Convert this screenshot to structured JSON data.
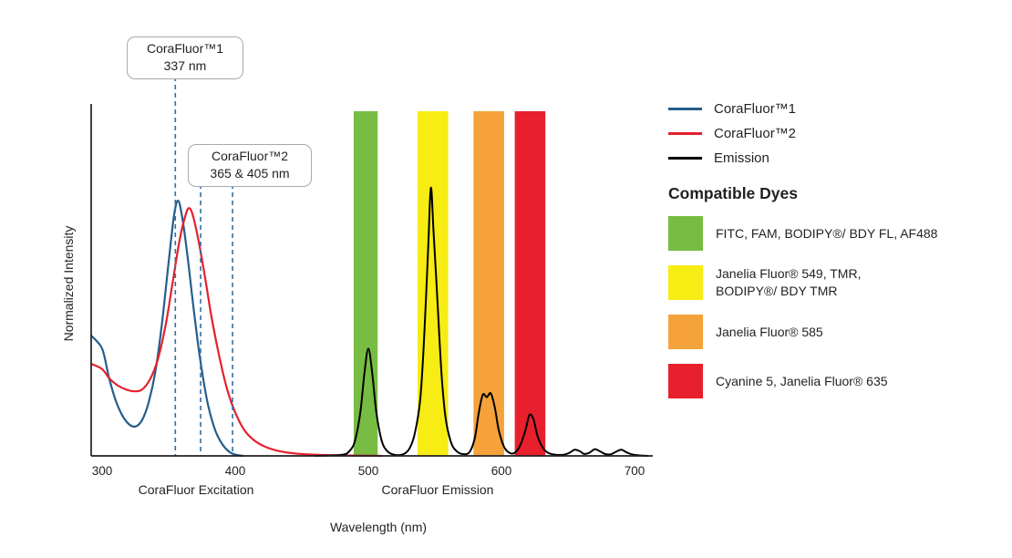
{
  "legend": {
    "series": [
      {
        "label": "CoraFluor™1",
        "color": "#255e8c"
      },
      {
        "label": "CoraFluor™2",
        "color": "#e4212e"
      },
      {
        "label": "Emission",
        "color": "#000000"
      }
    ],
    "dyes_title": "Compatible Dyes",
    "dyes": [
      {
        "label": "FITC, FAM, BODIPY®/ BDY FL, AF488",
        "color": "#77bc43"
      },
      {
        "label": "Janelia Fluor® 549, TMR,\nBODIPY®/ BDY TMR",
        "color": "#f7ec13"
      },
      {
        "label": "Janelia Fluor® 585",
        "color": "#f5a23b"
      },
      {
        "label": "Cyanine 5, Janelia Fluor® 635",
        "color": "#e8202e"
      }
    ]
  },
  "chart_data": {
    "type": "line",
    "title": "",
    "xlabel": "Wavelength (nm)",
    "ylabel": "Normalized Intensity",
    "x_ticks": [
      300,
      400,
      500,
      600,
      700
    ],
    "x_range": [
      292,
      712
    ],
    "y_range": [
      0,
      1.35
    ],
    "grid": false,
    "legend_position": "right",
    "axis_section_labels": [
      {
        "text": "CoraFluor Excitation",
        "center_nm": 370
      },
      {
        "text": "CoraFluor Emission",
        "center_nm": 552
      }
    ],
    "annotations": [
      {
        "title": "CoraFluor™1",
        "subtitle": "337 nm",
        "lines_nm": [
          355
        ]
      },
      {
        "title": "CoraFluor™2",
        "subtitle": "365 & 405 nm",
        "lines_nm": [
          374,
          398
        ]
      }
    ],
    "annotation_line_color": "#2f6fa7",
    "bands": [
      {
        "name": "fitc-fam-bodipy-fl-af488",
        "from_nm": 489,
        "to_nm": 507,
        "color": "#77bc43"
      },
      {
        "name": "jf549-tmr-bodipy-tmr",
        "from_nm": 537,
        "to_nm": 560,
        "color": "#f7ec13"
      },
      {
        "name": "jf585",
        "from_nm": 579,
        "to_nm": 602,
        "color": "#f5a23b"
      },
      {
        "name": "cy5-jf635",
        "from_nm": 610,
        "to_nm": 633,
        "color": "#e8202e"
      }
    ],
    "series": [
      {
        "name": "corafluor1-excitation",
        "color": "#255e8c",
        "width": 2.2,
        "points": [
          [
            292,
            0.47
          ],
          [
            300,
            0.42
          ],
          [
            305,
            0.31
          ],
          [
            310,
            0.22
          ],
          [
            315,
            0.16
          ],
          [
            320,
            0.125
          ],
          [
            325,
            0.115
          ],
          [
            330,
            0.14
          ],
          [
            335,
            0.21
          ],
          [
            340,
            0.33
          ],
          [
            345,
            0.52
          ],
          [
            350,
            0.76
          ],
          [
            354,
            0.94
          ],
          [
            357,
            1.0
          ],
          [
            360,
            0.94
          ],
          [
            364,
            0.79
          ],
          [
            368,
            0.61
          ],
          [
            372,
            0.44
          ],
          [
            376,
            0.3
          ],
          [
            380,
            0.19
          ],
          [
            385,
            0.1
          ],
          [
            390,
            0.048
          ],
          [
            395,
            0.018
          ],
          [
            400,
            0.005
          ],
          [
            406,
            0.0
          ]
        ]
      },
      {
        "name": "corafluor2-excitation",
        "color": "#e4212e",
        "width": 2.2,
        "points": [
          [
            292,
            0.36
          ],
          [
            300,
            0.34
          ],
          [
            306,
            0.3
          ],
          [
            312,
            0.275
          ],
          [
            318,
            0.26
          ],
          [
            324,
            0.253
          ],
          [
            330,
            0.26
          ],
          [
            336,
            0.3
          ],
          [
            342,
            0.38
          ],
          [
            348,
            0.52
          ],
          [
            353,
            0.68
          ],
          [
            358,
            0.84
          ],
          [
            362,
            0.93
          ],
          [
            365,
            0.97
          ],
          [
            368,
            0.945
          ],
          [
            372,
            0.855
          ],
          [
            377,
            0.71
          ],
          [
            382,
            0.55
          ],
          [
            388,
            0.39
          ],
          [
            394,
            0.26
          ],
          [
            400,
            0.17
          ],
          [
            407,
            0.1
          ],
          [
            414,
            0.062
          ],
          [
            422,
            0.037
          ],
          [
            432,
            0.02
          ],
          [
            444,
            0.01
          ],
          [
            458,
            0.005
          ],
          [
            475,
            0.002
          ],
          [
            495,
            0.001
          ],
          [
            510,
            0.0
          ]
        ]
      },
      {
        "name": "emission",
        "color": "#000000",
        "width": 2,
        "points": [
          [
            460,
            0.0
          ],
          [
            480,
            0.004
          ],
          [
            486,
            0.02
          ],
          [
            490,
            0.06
          ],
          [
            494,
            0.17
          ],
          [
            497,
            0.32
          ],
          [
            500,
            0.42
          ],
          [
            503,
            0.32
          ],
          [
            506,
            0.17
          ],
          [
            510,
            0.06
          ],
          [
            514,
            0.02
          ],
          [
            519,
            0.005
          ],
          [
            526,
            0.006
          ],
          [
            531,
            0.03
          ],
          [
            535,
            0.09
          ],
          [
            539,
            0.22
          ],
          [
            542,
            0.47
          ],
          [
            545,
            0.82
          ],
          [
            547,
            1.05
          ],
          [
            549,
            0.88
          ],
          [
            552,
            0.6
          ],
          [
            555,
            0.32
          ],
          [
            558,
            0.15
          ],
          [
            562,
            0.055
          ],
          [
            566,
            0.02
          ],
          [
            571,
            0.007
          ],
          [
            576,
            0.015
          ],
          [
            580,
            0.07
          ],
          [
            583,
            0.17
          ],
          [
            586,
            0.24
          ],
          [
            589,
            0.23
          ],
          [
            592,
            0.245
          ],
          [
            595,
            0.19
          ],
          [
            598,
            0.1
          ],
          [
            602,
            0.035
          ],
          [
            606,
            0.012
          ],
          [
            610,
            0.012
          ],
          [
            614,
            0.04
          ],
          [
            618,
            0.1
          ],
          [
            621,
            0.16
          ],
          [
            624,
            0.145
          ],
          [
            627,
            0.08
          ],
          [
            631,
            0.032
          ],
          [
            635,
            0.012
          ],
          [
            640,
            0.005
          ],
          [
            646,
            0.004
          ],
          [
            651,
            0.012
          ],
          [
            655,
            0.024
          ],
          [
            659,
            0.018
          ],
          [
            662,
            0.008
          ],
          [
            666,
            0.012
          ],
          [
            670,
            0.026
          ],
          [
            674,
            0.018
          ],
          [
            678,
            0.007
          ],
          [
            682,
            0.006
          ],
          [
            686,
            0.016
          ],
          [
            690,
            0.024
          ],
          [
            694,
            0.014
          ],
          [
            698,
            0.006
          ],
          [
            703,
            0.002
          ],
          [
            710,
            0.0
          ]
        ]
      }
    ]
  }
}
